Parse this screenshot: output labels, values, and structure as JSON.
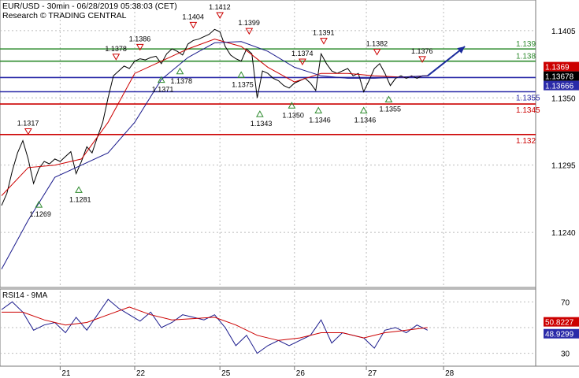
{
  "header": {
    "title": "EUR/USD - 30min - 06/28/2019 05:38:03 (CET)",
    "source": "Research © TRADING CENTRAL"
  },
  "colors": {
    "price": "#000000",
    "ma_fast": "#cc0000",
    "ma_slow": "#1a1a8c",
    "resistance_green": "#2e8b2e",
    "support_red": "#cc0000",
    "pivot_blue": "#2a2aa8",
    "arrow": "#1a2a9c",
    "marker_down": "#cc0000",
    "marker_up": "#2e8b2e"
  },
  "chart_data": [
    {
      "type": "line",
      "title": "",
      "x_labels": [
        "21",
        "22",
        "25",
        "26",
        "27",
        "28"
      ],
      "y_ticks": [
        "1.1405",
        "1.1350",
        "1.1295",
        "1.1240"
      ],
      "ylim": [
        1.1195,
        1.143
      ],
      "grid": true,
      "levels": [
        {
          "label": "1.139",
          "value": 1.139,
          "color": "#2e8b2e"
        },
        {
          "label": "1.138",
          "value": 1.138,
          "color": "#2e8b2e"
        },
        {
          "label": "1.13666",
          "value": 1.13666,
          "color": "#2a2aa8",
          "boxed": true
        },
        {
          "label": "1.1355",
          "value": 1.1355,
          "color": "#2a2aa8"
        },
        {
          "label": "1.1345",
          "value": 1.1345,
          "color": "#cc0000"
        },
        {
          "label": "1.132",
          "value": 1.132,
          "color": "#cc0000"
        }
      ],
      "price_tags": [
        {
          "label": "1.1369",
          "value": 1.1369,
          "bg": "#cc0000",
          "fg": "#ffffff"
        },
        {
          "label": "1.13678",
          "value": 1.13678,
          "bg": "#000000",
          "fg": "#ffffff"
        },
        {
          "label": "1.13666",
          "value": 1.13666,
          "bg": "#2a2aa8",
          "fg": "#ffffff"
        }
      ],
      "annotations": [
        {
          "label": "1.1317",
          "x": 0.05,
          "value": 1.1317,
          "kind": "high"
        },
        {
          "label": "1.1269",
          "x": 0.07,
          "value": 1.1269,
          "kind": "low"
        },
        {
          "label": "1.1281",
          "x": 0.145,
          "value": 1.1281,
          "kind": "low"
        },
        {
          "label": "1.1378",
          "x": 0.215,
          "value": 1.1378,
          "kind": "high"
        },
        {
          "label": "1.1386",
          "x": 0.26,
          "value": 1.1386,
          "kind": "high"
        },
        {
          "label": "1.1371",
          "x": 0.3,
          "value": 1.1371,
          "kind": "low"
        },
        {
          "label": "1.1378",
          "x": 0.335,
          "value": 1.1378,
          "kind": "low"
        },
        {
          "label": "1.1404",
          "x": 0.36,
          "value": 1.1404,
          "kind": "high"
        },
        {
          "label": "1.1412",
          "x": 0.41,
          "value": 1.1412,
          "kind": "high"
        },
        {
          "label": "1.1399",
          "x": 0.465,
          "value": 1.1399,
          "kind": "high"
        },
        {
          "label": "1.1375",
          "x": 0.45,
          "value": 1.1375,
          "kind": "low"
        },
        {
          "label": "1.1343",
          "x": 0.485,
          "value": 1.1343,
          "kind": "low"
        },
        {
          "label": "1.1374",
          "x": 0.565,
          "value": 1.1374,
          "kind": "high"
        },
        {
          "label": "1.1350",
          "x": 0.545,
          "value": 1.135,
          "kind": "low"
        },
        {
          "label": "1.1391",
          "x": 0.605,
          "value": 1.1391,
          "kind": "high"
        },
        {
          "label": "1.1346",
          "x": 0.595,
          "value": 1.1346,
          "kind": "low"
        },
        {
          "label": "1.1346",
          "x": 0.68,
          "value": 1.1346,
          "kind": "low"
        },
        {
          "label": "1.1382",
          "x": 0.705,
          "value": 1.1382,
          "kind": "high"
        },
        {
          "label": "1.1355",
          "x": 0.727,
          "value": 1.1355,
          "kind": "low"
        },
        {
          "label": "1.1376",
          "x": 0.79,
          "value": 1.1376,
          "kind": "high"
        }
      ],
      "series": [
        {
          "role": "price",
          "x": [
            0,
            0.01,
            0.02,
            0.03,
            0.04,
            0.05,
            0.06,
            0.07,
            0.08,
            0.09,
            0.1,
            0.11,
            0.12,
            0.13,
            0.14,
            0.15,
            0.16,
            0.17,
            0.18,
            0.19,
            0.2,
            0.21,
            0.22,
            0.23,
            0.24,
            0.25,
            0.26,
            0.27,
            0.28,
            0.29,
            0.3,
            0.31,
            0.32,
            0.33,
            0.34,
            0.35,
            0.36,
            0.37,
            0.38,
            0.39,
            0.4,
            0.41,
            0.42,
            0.43,
            0.44,
            0.45,
            0.46,
            0.47,
            0.48,
            0.49,
            0.5,
            0.51,
            0.52,
            0.53,
            0.54,
            0.55,
            0.56,
            0.57,
            0.58,
            0.59,
            0.6,
            0.61,
            0.62,
            0.63,
            0.64,
            0.65,
            0.66,
            0.67,
            0.68,
            0.69,
            0.7,
            0.71,
            0.72,
            0.73,
            0.74,
            0.75,
            0.76,
            0.77,
            0.78,
            0.79,
            0.8
          ],
          "values": [
            1.1262,
            1.1272,
            1.129,
            1.1305,
            1.1315,
            1.13,
            1.128,
            1.1292,
            1.1298,
            1.1296,
            1.13,
            1.1298,
            1.1302,
            1.1306,
            1.1288,
            1.1298,
            1.131,
            1.1305,
            1.1318,
            1.133,
            1.135,
            1.1368,
            1.1372,
            1.1376,
            1.1374,
            1.138,
            1.1382,
            1.1381,
            1.1383,
            1.1384,
            1.1378,
            1.1386,
            1.139,
            1.1388,
            1.1385,
            1.1394,
            1.1397,
            1.1398,
            1.14,
            1.1402,
            1.1406,
            1.1404,
            1.1392,
            1.1385,
            1.1382,
            1.138,
            1.139,
            1.1386,
            1.135,
            1.1372,
            1.137,
            1.1366,
            1.1364,
            1.136,
            1.1358,
            1.1362,
            1.1364,
            1.1366,
            1.1362,
            1.1356,
            1.1386,
            1.1378,
            1.1372,
            1.137,
            1.1372,
            1.1374,
            1.1368,
            1.137,
            1.1355,
            1.1364,
            1.1374,
            1.1378,
            1.137,
            1.136,
            1.1366,
            1.1368,
            1.1366,
            1.1368,
            1.1366,
            1.1368,
            1.1368
          ]
        },
        {
          "role": "ma_fast",
          "x": [
            0,
            0.05,
            0.1,
            0.15,
            0.2,
            0.25,
            0.3,
            0.35,
            0.4,
            0.45,
            0.5,
            0.55,
            0.6,
            0.65,
            0.7,
            0.75,
            0.8
          ],
          "values": [
            1.127,
            1.1293,
            1.1295,
            1.13,
            1.133,
            1.137,
            1.138,
            1.139,
            1.1398,
            1.1392,
            1.1375,
            1.1363,
            1.137,
            1.137,
            1.1368,
            1.1367,
            1.1368
          ]
        },
        {
          "role": "ma_slow",
          "x": [
            0,
            0.05,
            0.1,
            0.15,
            0.2,
            0.25,
            0.3,
            0.35,
            0.4,
            0.45,
            0.5,
            0.55,
            0.6,
            0.65,
            0.7,
            0.75,
            0.8
          ],
          "values": [
            1.121,
            1.125,
            1.1285,
            1.1295,
            1.1305,
            1.133,
            1.1365,
            1.1383,
            1.1395,
            1.1396,
            1.1388,
            1.1375,
            1.1368,
            1.1366,
            1.1366,
            1.1367,
            1.1368
          ]
        }
      ],
      "projection": {
        "from_x": 0.8,
        "from_value": 1.1368,
        "to_x": 0.87,
        "to_value": 1.1392
      }
    },
    {
      "type": "line",
      "title": "RSI14 - 9MA",
      "y_ticks": [
        "70",
        "30"
      ],
      "ylim": [
        20,
        80
      ],
      "grid": true,
      "value_tags": [
        {
          "label": "50.8227",
          "value": 50.8227,
          "bg": "#cc0000",
          "fg": "#ffffff"
        },
        {
          "label": "48.9299",
          "value": 48.9299,
          "bg": "#2a2aa8",
          "fg": "#ffffff"
        }
      ],
      "series": [
        {
          "role": "rsi",
          "x": [
            0,
            0.02,
            0.04,
            0.06,
            0.08,
            0.1,
            0.12,
            0.14,
            0.16,
            0.18,
            0.2,
            0.22,
            0.24,
            0.26,
            0.28,
            0.3,
            0.32,
            0.34,
            0.36,
            0.38,
            0.4,
            0.42,
            0.44,
            0.46,
            0.48,
            0.5,
            0.52,
            0.54,
            0.56,
            0.58,
            0.6,
            0.62,
            0.64,
            0.66,
            0.68,
            0.7,
            0.72,
            0.74,
            0.76,
            0.78,
            0.8
          ],
          "values": [
            64,
            70,
            62,
            48,
            52,
            54,
            46,
            58,
            48,
            60,
            72,
            65,
            60,
            55,
            62,
            50,
            54,
            60,
            58,
            56,
            60,
            50,
            36,
            44,
            30,
            36,
            40,
            36,
            40,
            44,
            56,
            38,
            46,
            44,
            42,
            34,
            48,
            50,
            46,
            52,
            48
          ]
        },
        {
          "role": "rsi_ma",
          "x": [
            0,
            0.04,
            0.08,
            0.12,
            0.16,
            0.2,
            0.24,
            0.28,
            0.32,
            0.36,
            0.4,
            0.44,
            0.48,
            0.52,
            0.56,
            0.6,
            0.64,
            0.68,
            0.72,
            0.76,
            0.8
          ],
          "values": [
            62,
            62,
            56,
            52,
            54,
            60,
            66,
            60,
            56,
            57,
            58,
            52,
            44,
            40,
            42,
            46,
            46,
            42,
            46,
            48,
            50
          ]
        }
      ]
    }
  ]
}
